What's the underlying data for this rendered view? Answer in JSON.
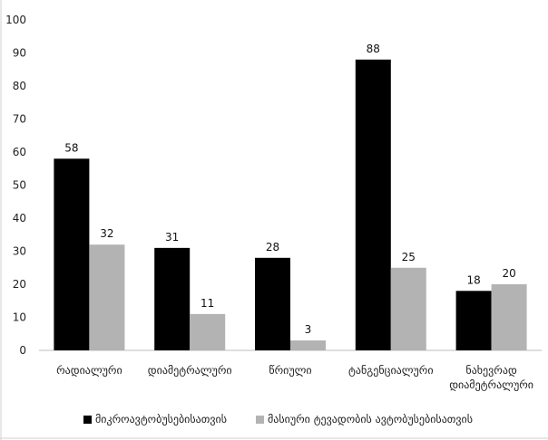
{
  "chart_data": {
    "type": "bar",
    "categories": [
      [
        "რადიალური"
      ],
      [
        "დიამეტრალური"
      ],
      [
        "წრიული"
      ],
      [
        "ტანგენციალური"
      ],
      [
        "ნახევრად",
        "დიამეტრალური"
      ]
    ],
    "series": [
      {
        "name": "მიკროავტობუსებისათვის",
        "values": [
          58,
          31,
          28,
          88,
          18
        ],
        "color": "#000000"
      },
      {
        "name": "მასიური ტევადობის ავტობუსებისათვის",
        "values": [
          32,
          11,
          3,
          25,
          20
        ],
        "color": "#b3b3b3"
      }
    ],
    "ylim": [
      0,
      100
    ],
    "yticks": [
      0,
      10,
      20,
      30,
      40,
      50,
      60,
      70,
      80,
      90,
      100
    ],
    "grid": false,
    "legend": "bottom",
    "data_labels": true
  }
}
